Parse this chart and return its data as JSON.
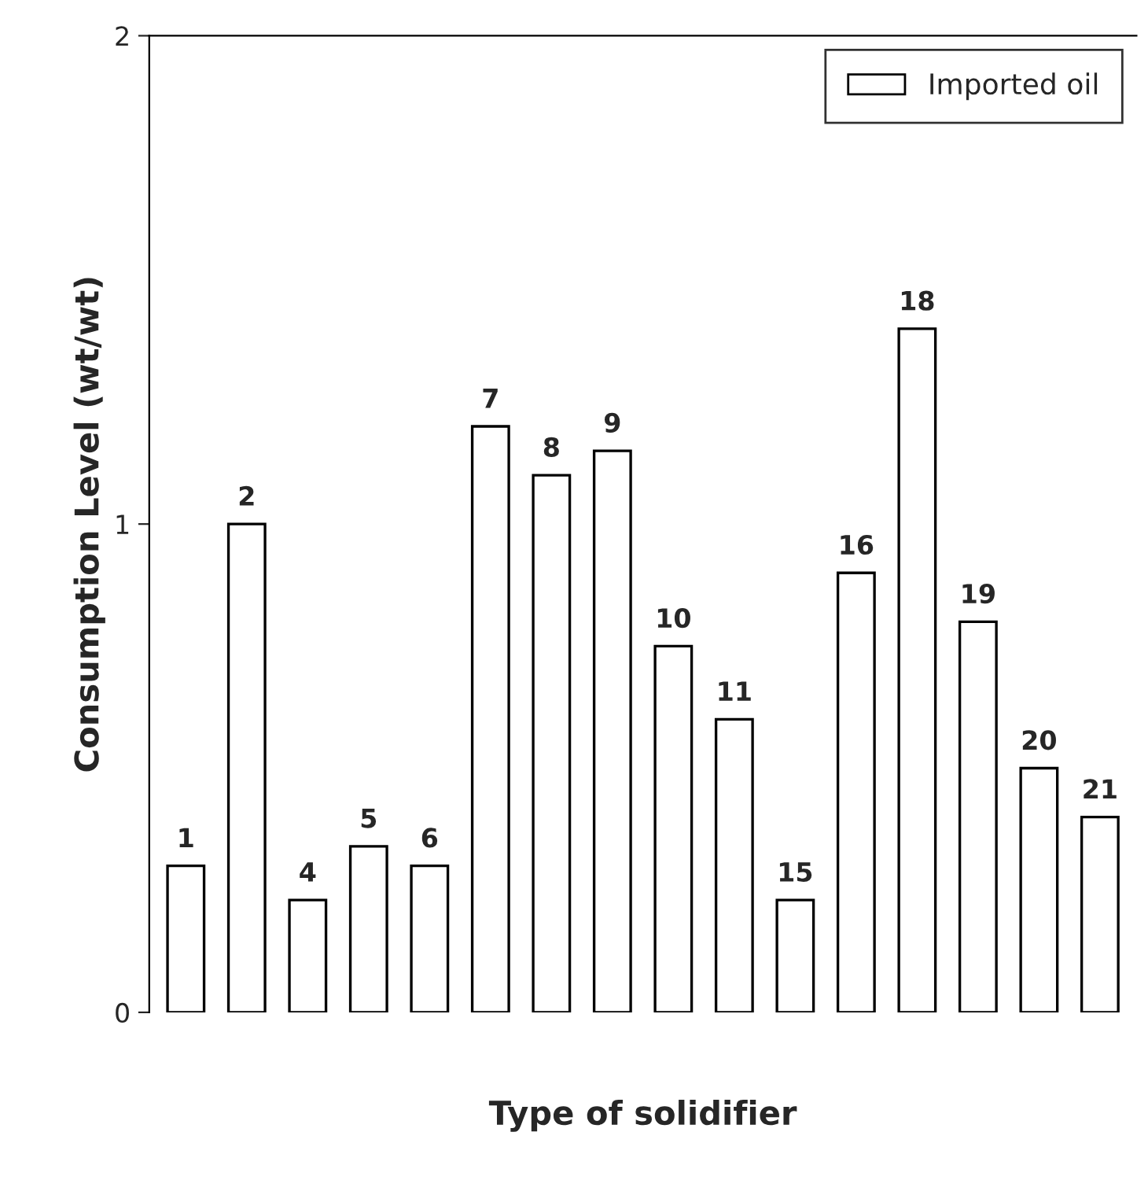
{
  "chart_data": {
    "type": "bar",
    "xlabel": "Type of solidifier",
    "ylabel": "Consumption Level (wt/wt)",
    "categories": [
      "1",
      "2",
      "4",
      "5",
      "6",
      "7",
      "8",
      "9",
      "10",
      "11",
      "15",
      "16",
      "18",
      "19",
      "20",
      "21"
    ],
    "series": [
      {
        "name": "Imported oil",
        "color": "#ffffff",
        "values": [
          0.3,
          1.0,
          0.23,
          0.34,
          0.3,
          1.2,
          1.1,
          1.15,
          0.75,
          0.6,
          0.23,
          0.9,
          1.4,
          0.8,
          0.5,
          0.4
        ]
      }
    ],
    "ylim": [
      0,
      2
    ],
    "yticks": [
      0,
      1,
      2
    ],
    "grid": false,
    "legend": "top right"
  }
}
